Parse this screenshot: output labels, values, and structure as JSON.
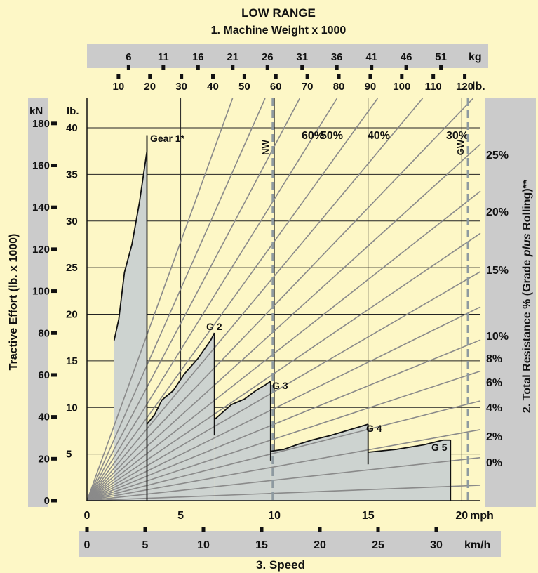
{
  "chart_data": {
    "type": "line",
    "title": "LOW RANGE",
    "subtitle": "1. Machine Weight x 1000",
    "weight_kg_label": "kg",
    "weight_lb_label": "lb.",
    "weight_kg_ticks": [
      6,
      11,
      16,
      21,
      26,
      31,
      36,
      41,
      46,
      51
    ],
    "weight_lb_ticks": [
      10,
      20,
      30,
      40,
      50,
      60,
      70,
      80,
      90,
      100,
      110,
      120
    ],
    "weight_lb_range": [
      0,
      125
    ],
    "ylabel_left": "Tractive Effort (lb. x 1000)",
    "y_kn_label": "kN",
    "y_kn_ticks": [
      0,
      20,
      40,
      60,
      80,
      100,
      120,
      140,
      160,
      180
    ],
    "y_lb_label": "lb.",
    "y_lb_ticks": [
      5,
      10,
      15,
      20,
      25,
      30,
      35,
      40
    ],
    "ylim_lb": [
      0,
      41
    ],
    "ylabel_right": "2. Total Resistance % (Grade plus Rolling)**",
    "ylabel_right_parts": [
      "2. Total Resistance % (Grade ",
      "plus",
      " Rolling)**"
    ],
    "resistance_percent_labels": [
      "60%",
      "50%",
      "40%",
      "30%",
      "25%",
      "20%",
      "15%",
      "10%",
      "8%",
      "6%",
      "4%",
      "2%",
      "0%"
    ],
    "resistance_lines_percent": [
      60,
      50,
      40,
      30,
      25,
      20,
      15,
      12,
      10,
      8,
      7,
      6,
      5,
      4,
      3,
      2,
      1,
      0.5
    ],
    "markers": [
      {
        "label": "NW",
        "weight_lb": 59
      },
      {
        "label": "GW",
        "weight_lb": 121
      }
    ],
    "xlabel": "3. Speed",
    "x_mph_label": "mph",
    "x_mph_ticks": [
      0,
      5,
      10,
      15,
      20
    ],
    "x_kmh_label": "km/h",
    "x_kmh_ticks": [
      0,
      5,
      10,
      15,
      20,
      25,
      30
    ],
    "xlim_mph": [
      0,
      21
    ],
    "grid": true,
    "series": [
      {
        "name": "Gear 1*",
        "points": [
          [
            1.45,
            17.2
          ],
          [
            1.7,
            19.5
          ],
          [
            2.0,
            24.5
          ],
          [
            2.4,
            27.5
          ],
          [
            2.8,
            32
          ],
          [
            3.2,
            37.5
          ],
          [
            3.2,
            39.2
          ]
        ],
        "end_mph": 3.2,
        "end_low": 0
      },
      {
        "name": "G 2",
        "points": [
          [
            3.2,
            8.2
          ],
          [
            3.6,
            9.2
          ],
          [
            4.0,
            10.8
          ],
          [
            4.6,
            11.8
          ],
          [
            5.2,
            13.6
          ],
          [
            5.9,
            15.2
          ],
          [
            6.6,
            17.2
          ],
          [
            6.8,
            18
          ]
        ],
        "end_mph": 6.8,
        "end_low": 7
      },
      {
        "name": "G 3",
        "points": [
          [
            6.8,
            8.7
          ],
          [
            7.2,
            9.4
          ],
          [
            7.7,
            10.3
          ],
          [
            8.4,
            10.9
          ],
          [
            9.0,
            11.8
          ],
          [
            9.5,
            12.4
          ],
          [
            9.8,
            12.8
          ]
        ],
        "end_mph": 9.8,
        "end_low": 4.3
      },
      {
        "name": "G 4",
        "points": [
          [
            9.8,
            5.3
          ],
          [
            10.5,
            5.5
          ],
          [
            11.2,
            6
          ],
          [
            12,
            6.5
          ],
          [
            13,
            7
          ],
          [
            14,
            7.6
          ],
          [
            15,
            8.2
          ]
        ],
        "end_mph": 15,
        "end_low": 3.9
      },
      {
        "name": "G 5",
        "points": [
          [
            15,
            5.2
          ],
          [
            16.5,
            5.5
          ],
          [
            18,
            6
          ],
          [
            19,
            6.5
          ],
          [
            19.4,
            6.5
          ]
        ],
        "end_mph": 19.4,
        "end_low": 0
      }
    ]
  }
}
